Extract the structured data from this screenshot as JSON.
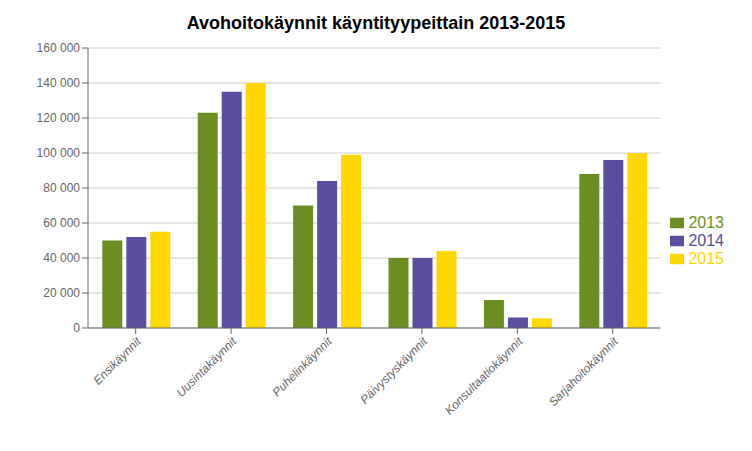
{
  "chart_data": {
    "type": "bar",
    "title": "Avohoitokäynnit käyntityypeittain 2013-2015",
    "categories": [
      "Ensikäynnit",
      "Uusintakäynnit",
      "Puhelinkäynnit",
      "Päivystyskäynnit",
      "Konsultaatiokäynnit",
      "Sarjahoitokäynnit"
    ],
    "series": [
      {
        "name": "2013",
        "color": "#6B8E23",
        "values": [
          50000,
          123000,
          70000,
          40000,
          16000,
          88000
        ]
      },
      {
        "name": "2014",
        "color": "#5B4EA0",
        "values": [
          52000,
          135000,
          84000,
          40000,
          6000,
          96000
        ]
      },
      {
        "name": "2015",
        "color": "#FFD700",
        "values": [
          55000,
          140000,
          99000,
          44000,
          5500,
          100000
        ]
      }
    ],
    "ylim": [
      0,
      160000
    ],
    "yticks": [
      0,
      {
        "value": 20000,
        "label": "20 000"
      },
      {
        "value": 40000,
        "label": "40 000"
      },
      {
        "value": 60000,
        "label": "60 000"
      },
      {
        "value": 80000,
        "label": "80 000"
      },
      {
        "value": 100000,
        "label": "100 000"
      },
      {
        "value": 120000,
        "label": "120 000"
      },
      {
        "value": 140000,
        "label": "140 000"
      },
      {
        "value": 160000,
        "label": "160 000"
      }
    ],
    "grid": true,
    "legend": "right"
  }
}
